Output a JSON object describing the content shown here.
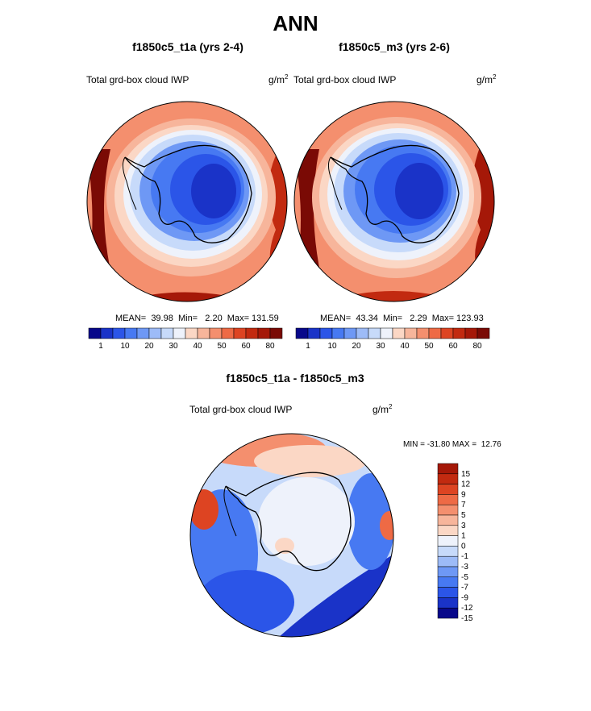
{
  "title": "ANN",
  "panels": [
    {
      "title": "f1850c5_t1a (yrs 2-4)",
      "variable": "Total grd-box cloud IWP",
      "unit": "g/m",
      "unit_exp": "2",
      "stats": "MEAN=  39.98  Min=   2.20  Max= 131.59"
    },
    {
      "title": "f1850c5_m3 (yrs 2-6)",
      "variable": "Total grd-box cloud IWP",
      "unit": "g/m",
      "unit_exp": "2",
      "stats": "MEAN=  43.34  Min=   2.29  Max= 123.93"
    }
  ],
  "diff_panel": {
    "title": "f1850c5_t1a - f1850c5_m3",
    "variable": "Total grd-box cloud IWP",
    "unit": "g/m",
    "unit_exp": "2",
    "minmax": "MIN = -31.80 MAX =  12.76"
  },
  "colors": {
    "abs_scale": [
      "#08088a",
      "#1a33c8",
      "#2b55e8",
      "#4779f2",
      "#6e98f5",
      "#9dbbf7",
      "#c7dafa",
      "#eef2fb",
      "#fbd7c5",
      "#f7b59b",
      "#f48f6e",
      "#ee6a45",
      "#dd4422",
      "#c22a10",
      "#a51808",
      "#7a0a05"
    ],
    "diff_scale": [
      "#08088a",
      "#1a33c8",
      "#2b55e8",
      "#4779f2",
      "#6e98f5",
      "#9dbbf7",
      "#c7dafa",
      "#eef2fb",
      "#fbd7c5",
      "#f7b59b",
      "#f48f6e",
      "#ee6a45",
      "#dd4422",
      "#c22a10",
      "#a51808"
    ]
  },
  "chart_data": [
    {
      "type": "heatmap",
      "projection": "south polar stereographic",
      "title": "f1850c5_t1a (yrs 2-4)",
      "variable": "Total grd-box cloud IWP",
      "unit": "g/m2",
      "mean": 39.98,
      "min": 2.2,
      "max": 131.59,
      "colorbar_levels": [
        1,
        5,
        10,
        15,
        20,
        25,
        30,
        35,
        40,
        45,
        50,
        55,
        60,
        70,
        80
      ],
      "colorbar_tick_labels": [
        "1",
        "10",
        "20",
        "30",
        "40",
        "50",
        "60",
        "80"
      ]
    },
    {
      "type": "heatmap",
      "projection": "south polar stereographic",
      "title": "f1850c5_m3 (yrs 2-6)",
      "variable": "Total grd-box cloud IWP",
      "unit": "g/m2",
      "mean": 43.34,
      "min": 2.29,
      "max": 123.93,
      "colorbar_levels": [
        1,
        5,
        10,
        15,
        20,
        25,
        30,
        35,
        40,
        45,
        50,
        55,
        60,
        70,
        80
      ],
      "colorbar_tick_labels": [
        "1",
        "10",
        "20",
        "30",
        "40",
        "50",
        "60",
        "80"
      ]
    },
    {
      "type": "heatmap",
      "projection": "south polar stereographic",
      "title": "f1850c5_t1a - f1850c5_m3",
      "variable": "Total grd-box cloud IWP",
      "unit": "g/m2",
      "min": -31.8,
      "max": 12.76,
      "colorbar_levels": [
        -15,
        -12,
        -9,
        -7,
        -5,
        -3,
        -1,
        0,
        1,
        3,
        5,
        7,
        9,
        12,
        15
      ],
      "colorbar_tick_labels": [
        "15",
        "12",
        "9",
        "7",
        "5",
        "3",
        "1",
        "0",
        "-1",
        "-3",
        "-5",
        "-7",
        "-9",
        "-12",
        "-15"
      ]
    }
  ]
}
